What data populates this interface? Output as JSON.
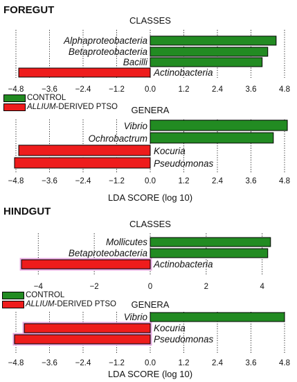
{
  "sections": [
    {
      "title": "FOREGUT"
    },
    {
      "title": "HINDGUT"
    }
  ],
  "legends": [
    {
      "items": [
        {
          "label": "CONTROL",
          "color": "#228B22"
        },
        {
          "label_italic": "ALLIUM",
          "label_rest": "-DERIVED PTSO",
          "color": "#EE1C1C"
        }
      ]
    },
    {
      "items": [
        {
          "label": "CONTROL",
          "color": "#228B22"
        },
        {
          "label_italic": "ALLIUM",
          "label_rest": "-DERIVED PTSO",
          "color": "#EE1C1C"
        }
      ]
    }
  ],
  "colors": {
    "control": "#228B22",
    "ptso": "#EE1C1C",
    "ptso_glow": "#E8A8E0"
  },
  "chart_data": [
    {
      "type": "bar",
      "orientation": "horizontal",
      "section": "FOREGUT",
      "title": "CLASSES",
      "xlabel": "",
      "xlim": [
        -4.8,
        4.8
      ],
      "xticks": [
        "−4.8",
        "−3.6",
        "−2.4",
        "−1.2",
        "0.0",
        "1.2",
        "2.4",
        "3.6",
        "4.8"
      ],
      "xtick_values": [
        -4.8,
        -3.6,
        -2.4,
        -1.2,
        0,
        1.2,
        2.4,
        3.6,
        4.8
      ],
      "grid": "vertical dotted",
      "bars": [
        {
          "label": "Alphaproteobacteria",
          "value": 4.5,
          "group": "control"
        },
        {
          "label": "Betaproteobacteria",
          "value": 4.2,
          "group": "control"
        },
        {
          "label": "Bacilli",
          "value": 4.0,
          "group": "control"
        },
        {
          "label": "Actinobacteria",
          "value": -4.7,
          "group": "ptso"
        }
      ]
    },
    {
      "type": "bar",
      "orientation": "horizontal",
      "section": "FOREGUT",
      "title": "GENERA",
      "xlabel": "LDA SCORE (log 10)",
      "xlim": [
        -4.8,
        4.8
      ],
      "xticks": [
        "−4.8",
        "−3.6",
        "−2.4",
        "−1.2",
        "0.0",
        "1.2",
        "2.4",
        "3.6",
        "4.8"
      ],
      "xtick_values": [
        -4.8,
        -3.6,
        -2.4,
        -1.2,
        0,
        1.2,
        2.4,
        3.6,
        4.8
      ],
      "grid": "vertical dotted",
      "bars": [
        {
          "label": "Vibrio",
          "value": 4.9,
          "group": "control"
        },
        {
          "label": "Ochrobactrum",
          "value": 4.4,
          "group": "control"
        },
        {
          "label": "Kocuria",
          "value": -4.7,
          "group": "ptso"
        },
        {
          "label": "Pseudomonas",
          "value": -4.85,
          "group": "ptso"
        }
      ]
    },
    {
      "type": "bar",
      "orientation": "horizontal",
      "section": "HINDGUT",
      "title": "CLASSES",
      "xlabel": "",
      "xlim": [
        -4.8,
        4.8
      ],
      "xticks": [
        "−4",
        "−2",
        "0",
        "2",
        "4"
      ],
      "xtick_values": [
        -4,
        -2,
        0,
        2,
        4
      ],
      "grid": "vertical dotted",
      "bars": [
        {
          "label": "Mollicutes",
          "value": 4.3,
          "group": "control"
        },
        {
          "label": "Betaproteobacteria",
          "value": 4.2,
          "group": "control"
        },
        {
          "label": "Actinobacteria",
          "value": -4.6,
          "group": "ptso"
        }
      ]
    },
    {
      "type": "bar",
      "orientation": "horizontal",
      "section": "HINDGUT",
      "title": "GENERA",
      "xlabel": "LDA SCORE (log 10)",
      "xlim": [
        -4.8,
        4.8
      ],
      "xticks": [
        "−4.8",
        "−3.6",
        "−2.4",
        "−1.2",
        "0.0",
        "1.2",
        "2.4",
        "3.6",
        "4.8"
      ],
      "xtick_values": [
        -4.8,
        -3.6,
        -2.4,
        -1.2,
        0,
        1.2,
        2.4,
        3.6,
        4.8
      ],
      "grid": "vertical dotted",
      "bars": [
        {
          "label": "Vibrio",
          "value": 4.8,
          "group": "control"
        },
        {
          "label": "Kocuria",
          "value": -4.5,
          "group": "ptso"
        },
        {
          "label": "Pseudomonas",
          "value": -4.85,
          "group": "ptso"
        }
      ]
    }
  ]
}
